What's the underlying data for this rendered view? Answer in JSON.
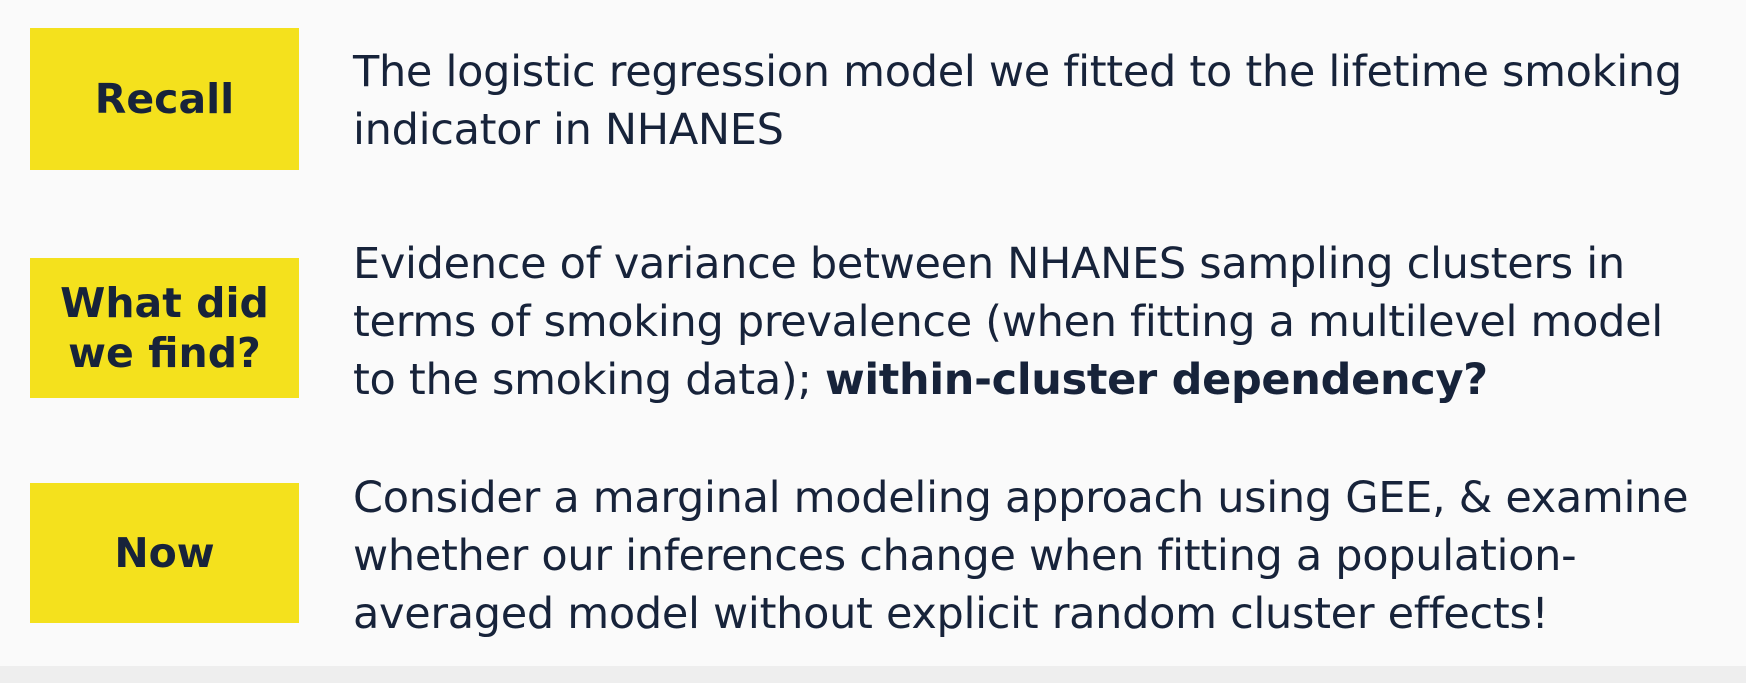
{
  "rows": [
    {
      "label": "Recall",
      "text": "The logistic regression model we fitted to the lifetime smoking\nindicator in NHANES"
    },
    {
      "label": "What did\nwe find?",
      "text": "Evidence of variance between NHANES sampling clusters in\nterms of smoking prevalence (when fitting a multilevel model\nto the smoking data); ",
      "emphasis": "within-cluster dependency?"
    },
    {
      "label": "Now",
      "text": "Consider a marginal modeling approach using GEE, & examine\nwhether our inferences change when fitting a population-\naveraged model without explicit random cluster effects!"
    }
  ],
  "colors": {
    "label_background": "#f4e11d",
    "text": "#17233a",
    "background": "#fafafa"
  }
}
